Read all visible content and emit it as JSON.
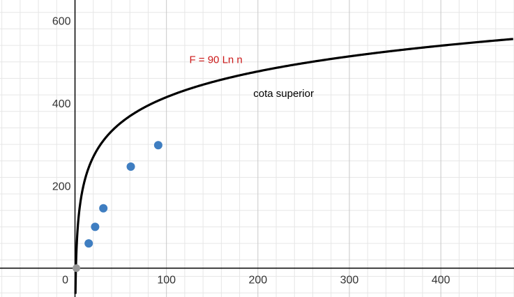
{
  "chart_data": {
    "type": "scatter",
    "title": "",
    "xlabel": "",
    "ylabel": "",
    "xlim": [
      -82,
      480
    ],
    "ylim": [
      -70,
      650
    ],
    "x_ticks": [
      0,
      100,
      200,
      300,
      400
    ],
    "x_tick_labels": [
      "0",
      "100",
      "200",
      "300",
      "400"
    ],
    "y_ticks": [
      200,
      400,
      600
    ],
    "y_tick_labels": [
      "200",
      "400",
      "600"
    ],
    "grid": true,
    "points": [
      {
        "x": 15,
        "y": 60
      },
      {
        "x": 22,
        "y": 100
      },
      {
        "x": 31,
        "y": 145
      },
      {
        "x": 61,
        "y": 246
      },
      {
        "x": 91,
        "y": 298
      }
    ],
    "origin_point": {
      "x": 0,
      "y": 0
    },
    "curve": {
      "label": "F = 90 Ln n",
      "coefficient": 90,
      "function": "ln",
      "x_offset": 0
    },
    "annotation": "cota superior",
    "colors": {
      "points": "#3f7ec1",
      "curve": "#000000",
      "curve_label": "#cc1a1a",
      "origin_point": "#999999",
      "grid_major": "#c8c8c8",
      "grid_minor": "#e6e6e6",
      "axes": "#000000"
    }
  }
}
